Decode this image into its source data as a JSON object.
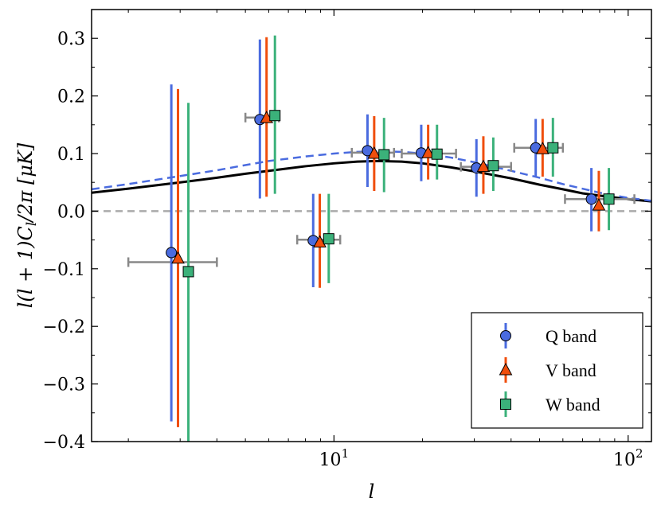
{
  "chart_data": {
    "type": "scatter",
    "title": "",
    "xlabel": "l",
    "ylabel": "l(l + 1)C_l/2π [μK]",
    "ylabel_parts": {
      "lead": "l(l + 1)C",
      "sub": "l",
      "trail": "/2π [μK]"
    },
    "xscale": "log",
    "xlim": [
      1.5,
      120
    ],
    "ylim": [
      -0.4,
      0.35
    ],
    "x_ticks": [
      {
        "value": 10,
        "base": "10",
        "exp": "1"
      },
      {
        "value": 100,
        "base": "10",
        "exp": "2"
      }
    ],
    "y_ticks": [
      {
        "value": 0.3,
        "label": "0.3"
      },
      {
        "value": 0.2,
        "label": "0.2"
      },
      {
        "value": 0.1,
        "label": "0.1"
      },
      {
        "value": 0.0,
        "label": "0.0"
      },
      {
        "value": -0.1,
        "label": "−0.1"
      },
      {
        "value": -0.2,
        "label": "−0.2"
      },
      {
        "value": -0.3,
        "label": "−0.3"
      },
      {
        "value": -0.4,
        "label": "−0.4"
      }
    ],
    "bin_centers": [
      2.8,
      5.6,
      8.5,
      13.0,
      19.8,
      30.5,
      48.5,
      75.0
    ],
    "bin_edges": [
      [
        2.0,
        4.0
      ],
      [
        5.0,
        6.5
      ],
      [
        7.5,
        10.5
      ],
      [
        11.5,
        16.0
      ],
      [
        17.0,
        26.0
      ],
      [
        27.0,
        40.0
      ],
      [
        41.0,
        60.0
      ],
      [
        61.0,
        105.0
      ]
    ],
    "series": [
      {
        "name": "Q band",
        "marker": "circle",
        "color": "#4a6bdf",
        "bar_color": "#4a6bdf",
        "x": [
          2.8,
          5.6,
          8.5,
          13.0,
          19.8,
          30.5,
          48.5,
          75.0
        ],
        "y": [
          -0.072,
          0.159,
          -0.051,
          0.105,
          0.101,
          0.075,
          0.11,
          0.021
        ],
        "yerr": [
          [
            -0.365,
            0.22
          ],
          [
            0.022,
            0.298
          ],
          [
            -0.132,
            0.03
          ],
          [
            0.042,
            0.168
          ],
          [
            0.052,
            0.15
          ],
          [
            0.025,
            0.125
          ],
          [
            0.06,
            0.16
          ],
          [
            -0.035,
            0.075
          ]
        ]
      },
      {
        "name": "V band",
        "marker": "triangle",
        "color": "#f04e0c",
        "bar_color": "#f04e0c",
        "x": [
          2.95,
          5.9,
          8.95,
          13.7,
          20.9,
          32.2,
          51.2,
          79.5
        ],
        "y": [
          -0.082,
          0.162,
          -0.054,
          0.1,
          0.101,
          0.077,
          0.108,
          0.01
        ],
        "yerr": [
          [
            -0.375,
            0.212
          ],
          [
            0.025,
            0.302
          ],
          [
            -0.133,
            0.03
          ],
          [
            0.035,
            0.165
          ],
          [
            0.055,
            0.15
          ],
          [
            0.03,
            0.13
          ],
          [
            0.06,
            0.16
          ],
          [
            -0.035,
            0.07
          ]
        ]
      },
      {
        "name": "W band",
        "marker": "square",
        "color": "#3bb17a",
        "bar_color": "#3bb17a",
        "x": [
          3.2,
          6.3,
          9.6,
          14.8,
          22.4,
          34.8,
          55.5,
          86.0
        ],
        "y": [
          -0.105,
          0.166,
          -0.048,
          0.098,
          0.099,
          0.079,
          0.11,
          0.021
        ],
        "yerr": [
          [
            -0.4,
            0.188
          ],
          [
            0.03,
            0.305
          ],
          [
            -0.125,
            0.03
          ],
          [
            0.033,
            0.162
          ],
          [
            0.055,
            0.15
          ],
          [
            0.035,
            0.128
          ],
          [
            0.06,
            0.162
          ],
          [
            -0.033,
            0.075
          ]
        ]
      }
    ],
    "model_curves": [
      {
        "name": "solid model",
        "style": "solid",
        "color": "#000000",
        "l": [
          1.5,
          2,
          3,
          4,
          5,
          6,
          8,
          10,
          12,
          14,
          17,
          20,
          25,
          30,
          40,
          50,
          60,
          70,
          80,
          100,
          120
        ],
        "y": [
          0.032,
          0.039,
          0.05,
          0.058,
          0.065,
          0.07,
          0.078,
          0.083,
          0.086,
          0.087,
          0.086,
          0.083,
          0.076,
          0.069,
          0.057,
          0.046,
          0.038,
          0.031,
          0.027,
          0.021,
          0.017
        ]
      },
      {
        "name": "dashed model",
        "style": "dashed",
        "color": "#4a6bdf",
        "l": [
          1.5,
          2,
          3,
          4,
          5,
          6,
          8,
          10,
          12,
          14,
          17,
          20,
          25,
          30,
          40,
          50,
          60,
          70,
          80,
          100,
          120
        ],
        "y": [
          0.038,
          0.047,
          0.061,
          0.071,
          0.08,
          0.087,
          0.095,
          0.1,
          0.103,
          0.104,
          0.103,
          0.1,
          0.093,
          0.085,
          0.07,
          0.058,
          0.047,
          0.039,
          0.032,
          0.023,
          0.018
        ]
      }
    ],
    "zero_line": {
      "y": 0.0,
      "style": "dashed",
      "color": "#aaaaaa"
    },
    "bin_error_color": "#888888",
    "grid": false,
    "legend_position": "bottom-right"
  }
}
